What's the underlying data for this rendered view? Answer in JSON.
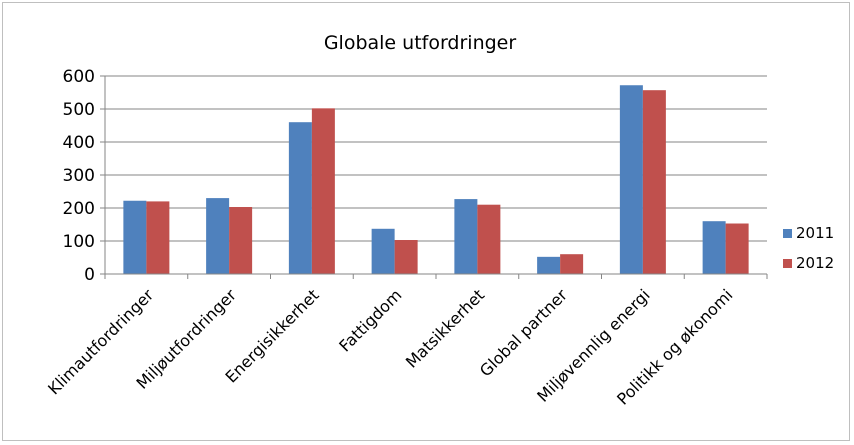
{
  "chart_data": {
    "type": "bar",
    "title": "Globale utfordringer",
    "xlabel": "",
    "ylabel": "",
    "categories": [
      "Klimautfordringer",
      "Miljøutfordringer",
      "Energisikkerhet",
      "Fattigdom",
      "Matsikkerhet",
      "Global partner",
      "Miljøvennlig energi",
      "Politikk og økonomi"
    ],
    "series": [
      {
        "name": "2011",
        "color": "#4f81bd",
        "values": [
          222,
          230,
          460,
          137,
          227,
          52,
          572,
          160
        ]
      },
      {
        "name": "2012",
        "color": "#c0504d",
        "values": [
          220,
          203,
          502,
          103,
          210,
          60,
          557,
          153
        ]
      }
    ],
    "ylim": [
      0,
      600
    ],
    "yticks": [
      "0",
      "100",
      "200",
      "300",
      "400",
      "500",
      "600"
    ],
    "grid": true,
    "legend_position": "right"
  }
}
